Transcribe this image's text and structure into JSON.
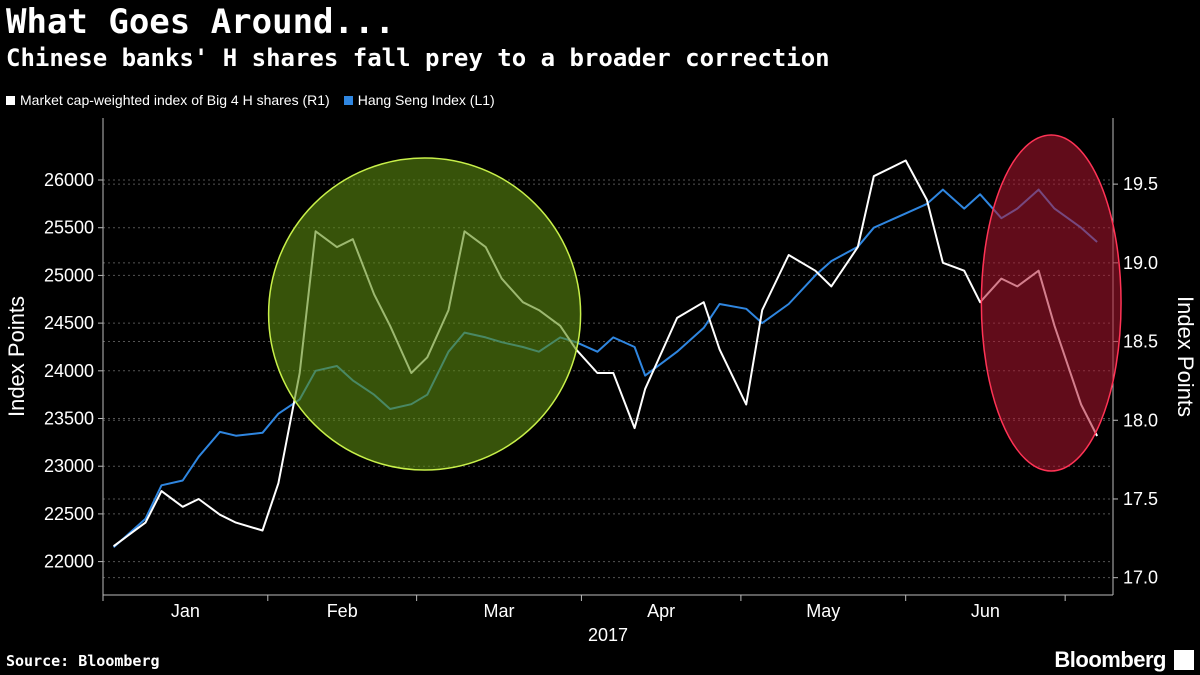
{
  "header": {
    "title": "What Goes Around...",
    "subtitle": "Chinese banks' H shares fall prey to a broader correction"
  },
  "legend": [
    {
      "label": "Market cap-weighted index of Big 4 H shares (R1)",
      "color": "#ffffff"
    },
    {
      "label": "Hang Seng Index (L1)",
      "color": "#2f86e0"
    }
  ],
  "footer": {
    "source": "Source: Bloomberg",
    "brand": "Bloomberg"
  },
  "colors": {
    "background": "#000000",
    "hang_seng": "#2f86e0",
    "big4": "#ffffff",
    "green_highlight": "#5c8a10",
    "red_highlight": "#b01530"
  },
  "chart_data": {
    "type": "line",
    "xlabel": "2017",
    "x_tick_labels": [
      "Jan",
      "Feb",
      "Mar",
      "Apr",
      "May",
      "Jun"
    ],
    "x": [
      "2017-01-03",
      "2017-01-05",
      "2017-01-09",
      "2017-01-12",
      "2017-01-16",
      "2017-01-19",
      "2017-01-23",
      "2017-01-26",
      "2017-01-31",
      "2017-02-03",
      "2017-02-07",
      "2017-02-10",
      "2017-02-14",
      "2017-02-17",
      "2017-02-21",
      "2017-02-24",
      "2017-02-28",
      "2017-03-03",
      "2017-03-07",
      "2017-03-10",
      "2017-03-14",
      "2017-03-17",
      "2017-03-21",
      "2017-03-24",
      "2017-03-28",
      "2017-03-31",
      "2017-04-04",
      "2017-04-07",
      "2017-04-11",
      "2017-04-13",
      "2017-04-19",
      "2017-04-24",
      "2017-04-27",
      "2017-05-02",
      "2017-05-05",
      "2017-05-10",
      "2017-05-15",
      "2017-05-18",
      "2017-05-23",
      "2017-05-26",
      "2017-06-01",
      "2017-06-05",
      "2017-06-08",
      "2017-06-12",
      "2017-06-15",
      "2017-06-19",
      "2017-06-22",
      "2017-06-26",
      "2017-06-29",
      "2017-07-04",
      "2017-07-07"
    ],
    "y_left_label": "Index Points",
    "y_right_label": "Index Points",
    "y_left_ticks": [
      22000,
      22500,
      23000,
      23500,
      24000,
      24500,
      25000,
      25500,
      26000
    ],
    "y_right_ticks": [
      17.0,
      17.5,
      18.0,
      18.5,
      19.0,
      19.5
    ],
    "y_left_lim": [
      21650,
      26650
    ],
    "y_right_lim": [
      16.89,
      19.92
    ],
    "grid": true,
    "series": [
      {
        "name": "Hang Seng Index (L1)",
        "axis": "left",
        "values": [
          22150,
          22250,
          22450,
          22800,
          22850,
          23100,
          23360,
          23320,
          23350,
          23550,
          23700,
          24000,
          24050,
          23900,
          23750,
          23600,
          23650,
          23750,
          24200,
          24400,
          24350,
          24300,
          24250,
          24200,
          24350,
          24300,
          24200,
          24350,
          24250,
          23950,
          24200,
          24450,
          24700,
          24650,
          24500,
          24700,
          25000,
          25150,
          25300,
          25500,
          25650,
          25750,
          25900,
          25700,
          25850,
          25600,
          25700,
          25900,
          25700,
          25500,
          25350
        ]
      },
      {
        "name": "Market cap-weighted index of Big 4 H shares (R1)",
        "axis": "right",
        "values": [
          17.2,
          17.25,
          17.35,
          17.55,
          17.45,
          17.5,
          17.4,
          17.35,
          17.3,
          17.6,
          18.3,
          19.2,
          19.1,
          19.15,
          18.8,
          18.6,
          18.3,
          18.4,
          18.7,
          19.2,
          19.1,
          18.9,
          18.75,
          18.7,
          18.6,
          18.45,
          18.3,
          18.3,
          17.95,
          18.2,
          18.65,
          18.75,
          18.45,
          18.1,
          18.7,
          19.05,
          18.95,
          18.85,
          19.1,
          19.55,
          19.65,
          19.4,
          19.0,
          18.95,
          18.75,
          18.9,
          18.85,
          18.95,
          18.6,
          18.1,
          17.9
        ]
      }
    ],
    "highlights": [
      {
        "shape": "circle",
        "x_range": [
          "2017-02-01",
          "2017-04-01"
        ],
        "color": "green"
      },
      {
        "shape": "ellipse",
        "x_range": [
          "2017-06-19",
          "2017-07-07"
        ],
        "color": "red"
      }
    ]
  }
}
